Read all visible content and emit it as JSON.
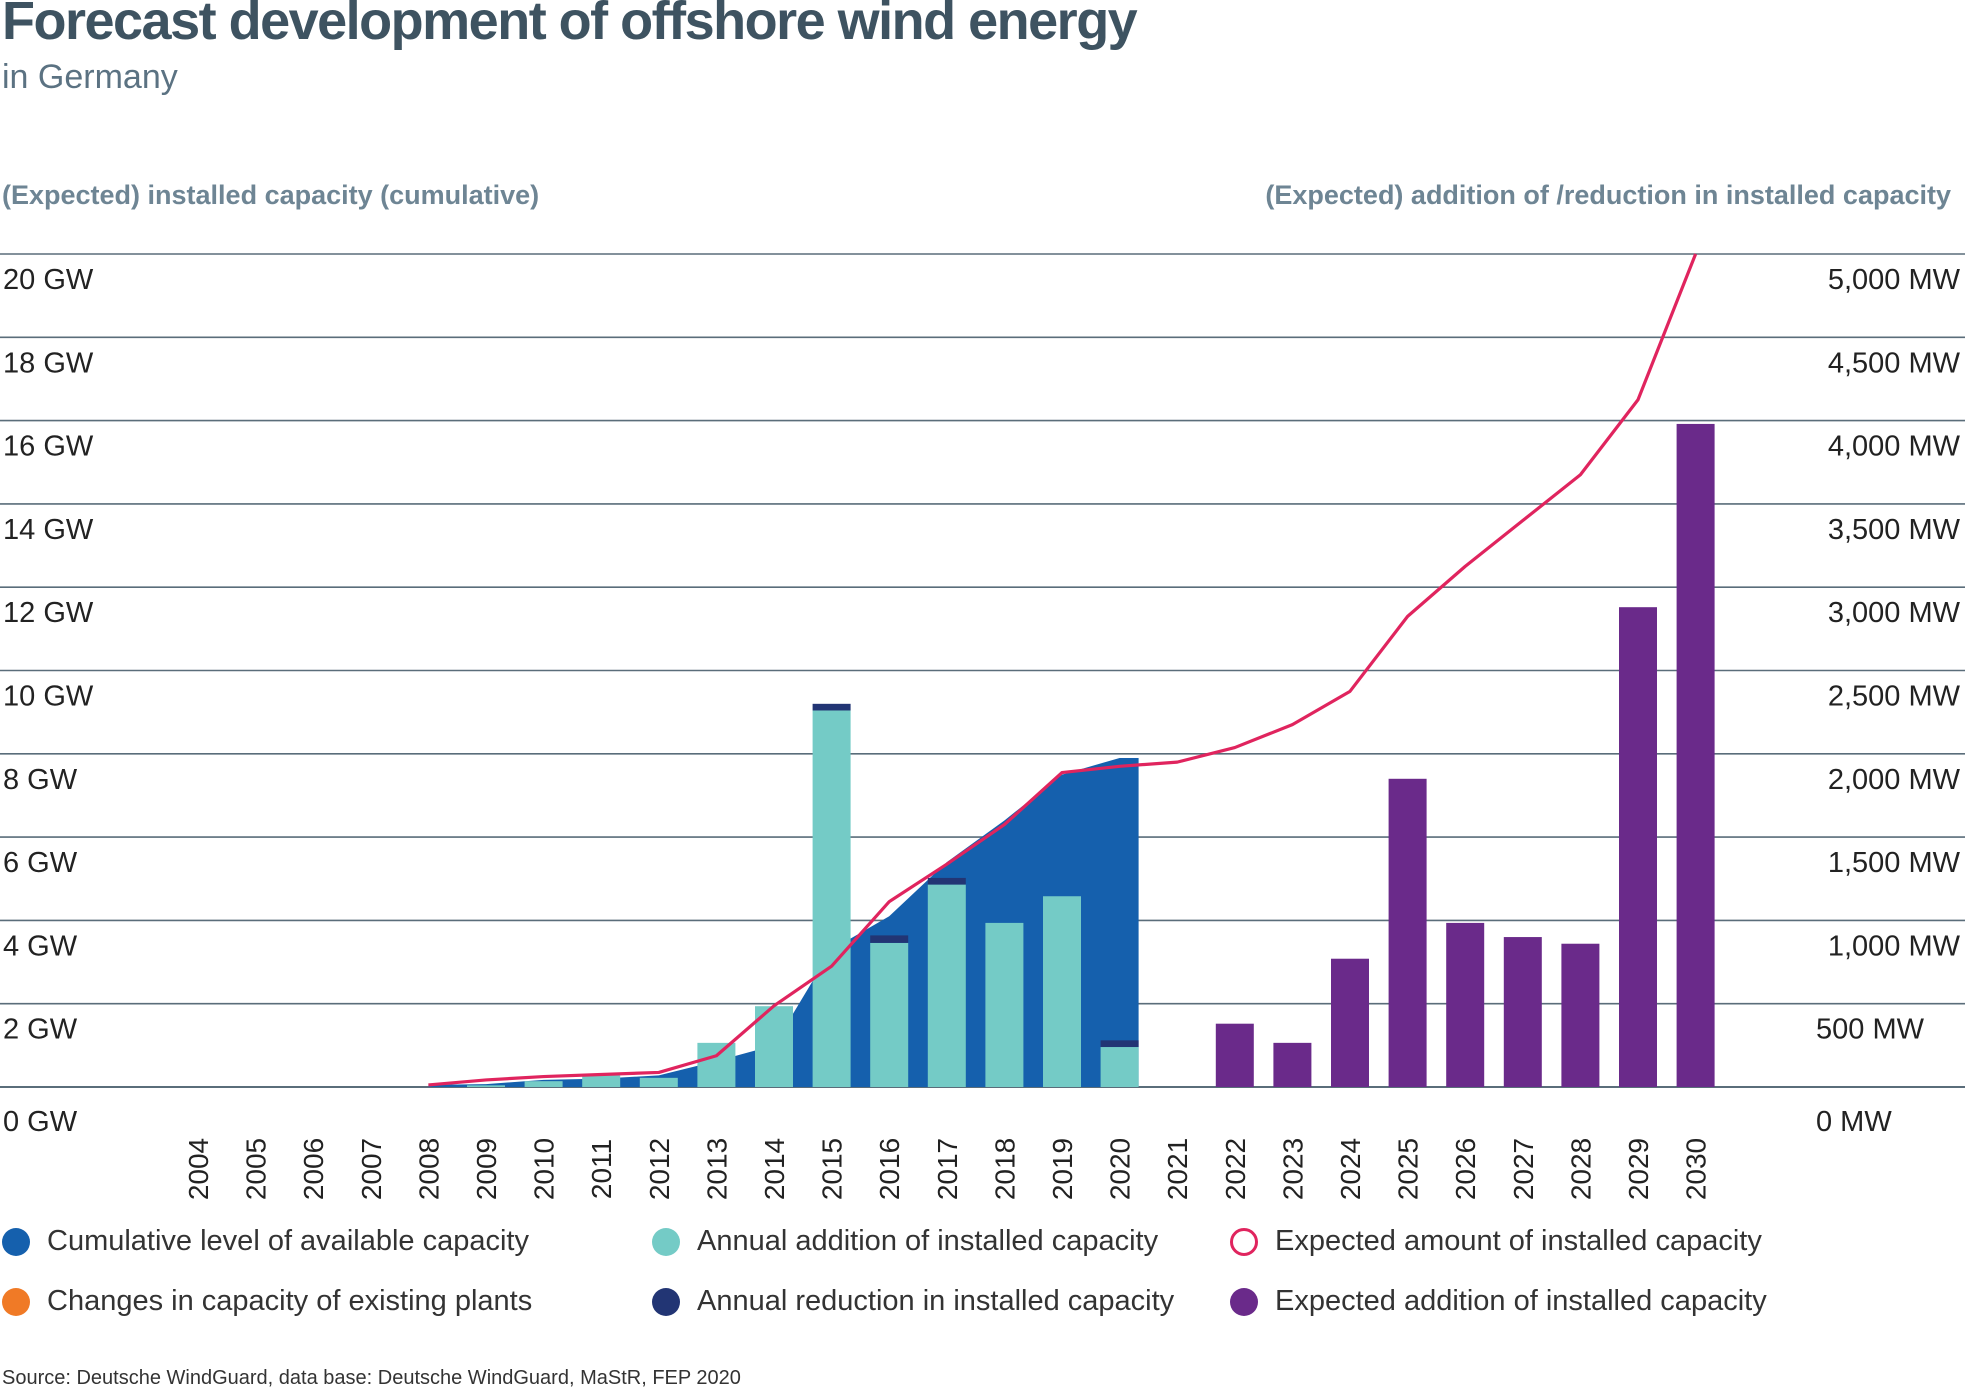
{
  "title": "Forecast development of offshore wind energy",
  "subtitle": "in Germany",
  "left_axis_heading": "(Expected) installed capacity (cumulative)",
  "right_axis_heading": "(Expected) addition of /reduction in installed capacity",
  "source": "Source: Deutsche WindGuard, data base: Deutsche WindGuard, MaStR, FEP 2020",
  "colors": {
    "cumulative": "#1560ad",
    "annual_addition": "#74cbc6",
    "expected_line": "#e0245e",
    "changes_existing": "#f07a26",
    "annual_reduction": "#223574",
    "expected_addition": "#6a2a8a",
    "grid": "#5a6d7a"
  },
  "legend": [
    {
      "key": "cumulative",
      "label": "Cumulative level of available capacity",
      "style": "filled"
    },
    {
      "key": "annual_addition",
      "label": "Annual addition of installed capacity",
      "style": "filled"
    },
    {
      "key": "expected_line",
      "label": "Expected amount of installed capacity",
      "style": "ring"
    },
    {
      "key": "changes_existing",
      "label": "Changes in capacity of existing plants",
      "style": "filled"
    },
    {
      "key": "annual_reduction",
      "label": "Annual reduction in installed capacity",
      "style": "filled"
    },
    {
      "key": "expected_addition",
      "label": "Expected addition of installed capacity",
      "style": "filled"
    }
  ],
  "chart_data": {
    "type": "bar",
    "categories": [
      "2004",
      "2005",
      "2006",
      "2007",
      "2008",
      "2009",
      "2010",
      "2011",
      "2012",
      "2013",
      "2014",
      "2015",
      "2016",
      "2017",
      "2018",
      "2019",
      "2020",
      "2021",
      "2022",
      "2023",
      "2024",
      "2025",
      "2026",
      "2027",
      "2028",
      "2029",
      "2030"
    ],
    "left_axis": {
      "ticks": [
        0,
        2,
        4,
        6,
        8,
        10,
        12,
        14,
        16,
        18,
        20
      ],
      "tick_labels": [
        "0 GW",
        "2 GW",
        "4 GW",
        "6 GW",
        "8 GW",
        "10 GW",
        "12 GW",
        "14 GW",
        "16 GW",
        "18 GW",
        "20 GW"
      ],
      "range": [
        0,
        20
      ]
    },
    "right_axis": {
      "ticks": [
        0,
        500,
        1000,
        1500,
        2000,
        2500,
        3000,
        3500,
        4000,
        4500,
        5000
      ],
      "tick_labels": [
        "0 MW",
        "500 MW",
        "1,000 MW",
        "1,500 MW",
        "2,000 MW",
        "2,500 MW",
        "3,000 MW",
        "3,500 MW",
        "4,000 MW",
        "4,500 MW",
        "5,000 MW"
      ],
      "range": [
        0,
        5000
      ]
    },
    "cumulative_gw": [
      [
        "2008",
        0.05
      ],
      [
        "2009",
        0.07
      ],
      [
        "2010",
        0.17
      ],
      [
        "2011",
        0.2
      ],
      [
        "2012",
        0.28
      ],
      [
        "2013",
        0.62
      ],
      [
        "2014",
        1.0
      ],
      [
        "2015",
        3.3
      ],
      [
        "2016",
        4.1
      ],
      [
        "2017",
        5.4
      ],
      [
        "2018",
        6.4
      ],
      [
        "2019",
        7.5
      ],
      [
        "2020",
        7.9
      ]
    ],
    "expected_gw": [
      [
        "2008",
        0.05
      ],
      [
        "2009",
        0.17
      ],
      [
        "2010",
        0.25
      ],
      [
        "2011",
        0.3
      ],
      [
        "2012",
        0.35
      ],
      [
        "2013",
        0.75
      ],
      [
        "2014",
        1.95
      ],
      [
        "2015",
        2.9
      ],
      [
        "2016",
        4.45
      ],
      [
        "2017",
        5.35
      ],
      [
        "2018",
        6.3
      ],
      [
        "2019",
        7.55
      ],
      [
        "2020",
        7.7
      ],
      [
        "2021",
        7.8
      ],
      [
        "2022",
        8.15
      ],
      [
        "2023",
        8.7
      ],
      [
        "2024",
        9.5
      ],
      [
        "2025",
        11.3
      ],
      [
        "2026",
        12.5
      ],
      [
        "2027",
        13.6
      ],
      [
        "2028",
        14.7
      ],
      [
        "2029",
        16.5
      ],
      [
        "2030",
        20.1
      ]
    ],
    "series": [
      {
        "name": "Annual addition of installed capacity",
        "values_mw": {
          "2009": 10,
          "2010": 35,
          "2011": 70,
          "2012": 55,
          "2013": 265,
          "2014": 485,
          "2015": 2260,
          "2016": 865,
          "2017": 1215,
          "2018": 985,
          "2019": 1145,
          "2020": 240
        }
      },
      {
        "name": "Annual reduction in installed capacity",
        "values_mw": {
          "2015": 40,
          "2016": 45,
          "2017": 40,
          "2020": 40
        }
      },
      {
        "name": "Expected addition of installed capacity",
        "values_mw": {
          "2022": 380,
          "2023": 265,
          "2024": 770,
          "2025": 1850,
          "2026": 985,
          "2027": 900,
          "2028": 860,
          "2029": 2880,
          "2030": 3980
        }
      }
    ]
  }
}
